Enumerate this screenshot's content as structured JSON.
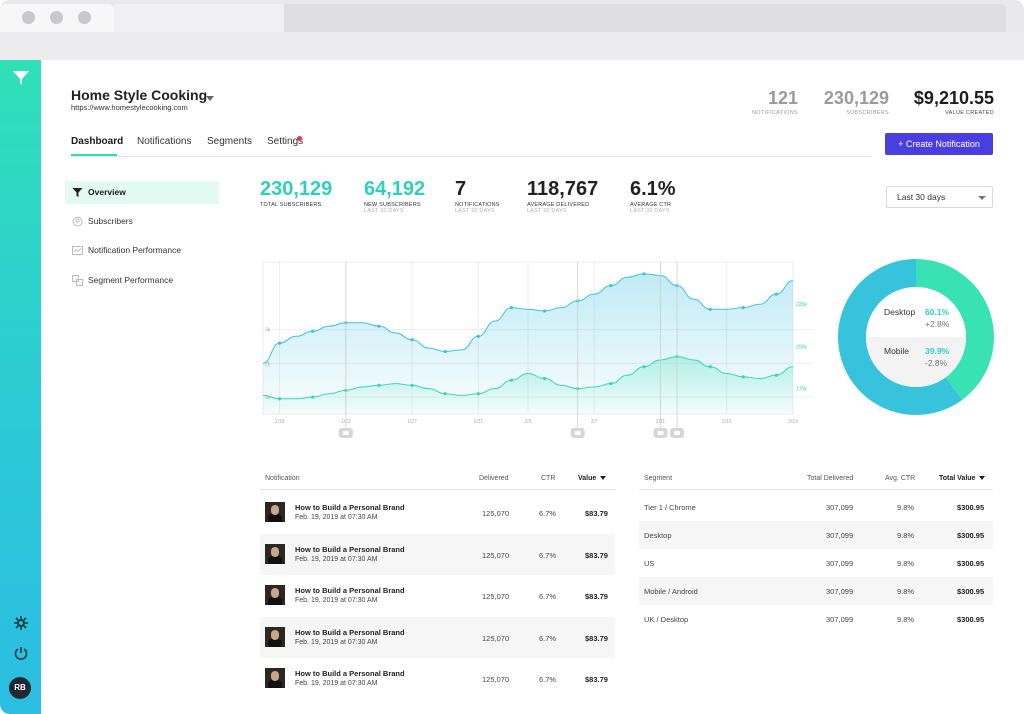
{
  "window": {
    "dot_colors": [
      "#c9c9cc",
      "#c9c9cc",
      "#c9c9cc"
    ]
  },
  "colors": {
    "accent_teal": "#2fdcb4",
    "chart_line": "#35c7d6",
    "button": "#4b3ee0",
    "rail_top": "#2fe0b8",
    "rail_bottom": "#2bbde2",
    "donut_desktop": "#37c3dc",
    "donut_mobile": "#39e2b2",
    "notification_dot": "#e8355a"
  },
  "rail": {
    "logo": "funnel-logo-icon",
    "settings_icon": "gear-icon",
    "power_icon": "power-icon",
    "avatar_initials": "RB"
  },
  "header": {
    "site_name": "Home Style Cooking",
    "site_url": "https://www.homestylecooking.com",
    "stats": [
      {
        "value": "121",
        "label": "NOTIFICATIONS"
      },
      {
        "value": "230,129",
        "label": "SUBSCRIBERS"
      },
      {
        "value": "$9,210.55",
        "label": "VALUE CREATED"
      }
    ],
    "create_button": "+ Create Notification"
  },
  "nav": {
    "tabs": [
      "Dashboard",
      "Notifications",
      "Segments",
      "Settings"
    ],
    "active": "Dashboard"
  },
  "menu": {
    "items": [
      {
        "label": "Overview",
        "icon": "filter-icon"
      },
      {
        "label": "Subscribers",
        "icon": "subscribers-icon"
      },
      {
        "label": "Notification Performance",
        "icon": "notification-performance-icon"
      },
      {
        "label": "Segment Performance",
        "icon": "segment-performance-icon"
      }
    ]
  },
  "kpis": [
    {
      "value": "230,129",
      "label": "TOTAL SUBSCRIBERS",
      "sub": ""
    },
    {
      "value": "64,192",
      "label": "NEW SUBSCRIBERS",
      "sub": "LAST 30 DAYS"
    },
    {
      "value": "7",
      "label": "NOTIFICATIONS",
      "sub": "LAST 30 DAYS"
    },
    {
      "value": "118,767",
      "label": "AVERAGE DELIVERED",
      "sub": "LAST 30 DAYS"
    },
    {
      "value": "6.1%",
      "label": "AVERAGE CTR",
      "sub": "LAST 30 DAYS"
    }
  ],
  "range_select": {
    "value": "Last 30 days"
  },
  "chart_data": [
    {
      "type": "area",
      "x": [
        "1/18",
        "1/19",
        "1/20",
        "1/21",
        "1/22",
        "1/23",
        "1/24",
        "1/25",
        "1/26",
        "1/27",
        "1/28",
        "1/29",
        "1/30",
        "1/31",
        "2/1",
        "2/2",
        "2/3",
        "2/4",
        "2/5",
        "2/6",
        "2/7",
        "2/8",
        "2/9",
        "2/10",
        "2/11",
        "2/12",
        "2/13",
        "2/14",
        "2/15",
        "2/16",
        "2/17",
        "2/18",
        "2/19"
      ],
      "x_ticks": [
        "1/19",
        "1/23",
        "1/27",
        "1/31",
        "2/3",
        "2/7",
        "2/11",
        "2/15",
        "2/19"
      ],
      "left_ticks": [
        "3k",
        "2k",
        "1k"
      ],
      "right_ticks": [
        "225k",
        "200k",
        "175k"
      ],
      "series": [
        {
          "axis": "left",
          "values": [
            2.0,
            2.6,
            2.8,
            2.95,
            3.1,
            3.2,
            3.2,
            3.1,
            2.9,
            2.7,
            2.45,
            2.35,
            2.4,
            2.8,
            3.25,
            3.65,
            3.6,
            3.55,
            3.65,
            3.85,
            4.05,
            4.3,
            4.55,
            4.65,
            4.6,
            4.3,
            3.9,
            3.6,
            3.6,
            3.65,
            3.75,
            4.05,
            4.45
          ]
        },
        {
          "axis": "right",
          "values": [
            171,
            169,
            169,
            170,
            172,
            174,
            176,
            177,
            178,
            177,
            175,
            172,
            171,
            172,
            175,
            180,
            184,
            181,
            177,
            175,
            176,
            178,
            183,
            188,
            192,
            194,
            192,
            188,
            184,
            182,
            181,
            183,
            188
          ]
        }
      ],
      "markers": [
        "1/23",
        "2/6",
        "2/11",
        "2/12"
      ]
    },
    {
      "type": "pie",
      "categories": [
        "Desktop",
        "Mobile"
      ],
      "values": [
        60.1,
        39.9
      ],
      "changes": [
        "+2.8%",
        "-2.8%"
      ],
      "labels": [
        "60.1%",
        "39.9%"
      ]
    }
  ],
  "notifications_table": {
    "headers": [
      "Notification",
      "Delivered",
      "CTR",
      "Value"
    ],
    "rows": [
      {
        "title": "How to Build a Personal Brand",
        "date": "Feb. 19, 2019 at 07:30 AM",
        "delivered": "125,070",
        "ctr": "6.7%",
        "value": "$83.79"
      },
      {
        "title": "How to Build a Personal Brand",
        "date": "Feb. 19, 2019 at 07:30 AM",
        "delivered": "125,070",
        "ctr": "6.7%",
        "value": "$83.79"
      },
      {
        "title": "How to Build a Personal Brand",
        "date": "Feb. 19, 2019 at 07:30 AM",
        "delivered": "125,070",
        "ctr": "6.7%",
        "value": "$83.79"
      },
      {
        "title": "How to Build a Personal Brand",
        "date": "Feb. 19, 2019 at 07:30 AM",
        "delivered": "125,070",
        "ctr": "6.7%",
        "value": "$83.79"
      },
      {
        "title": "How to Build a Personal Brand",
        "date": "Feb. 19, 2019 at 07:30 AM",
        "delivered": "125,070",
        "ctr": "6.7%",
        "value": "$83.79"
      }
    ]
  },
  "segments_table": {
    "headers": [
      "Segment",
      "Total Delivered",
      "Avg. CTR",
      "Total Value"
    ],
    "rows": [
      {
        "segment": "Tier 1 / Chrome",
        "delivered": "307,099",
        "ctr": "9.8%",
        "value": "$300.95"
      },
      {
        "segment": "Desktop",
        "delivered": "307,099",
        "ctr": "9.8%",
        "value": "$300.95"
      },
      {
        "segment": "US",
        "delivered": "307,099",
        "ctr": "9.8%",
        "value": "$300.95"
      },
      {
        "segment": "Mobile / Android",
        "delivered": "307,099",
        "ctr": "9.8%",
        "value": "$300.95"
      },
      {
        "segment": "UK / Desktop",
        "delivered": "307,099",
        "ctr": "9.8%",
        "value": "$300.95"
      }
    ]
  }
}
